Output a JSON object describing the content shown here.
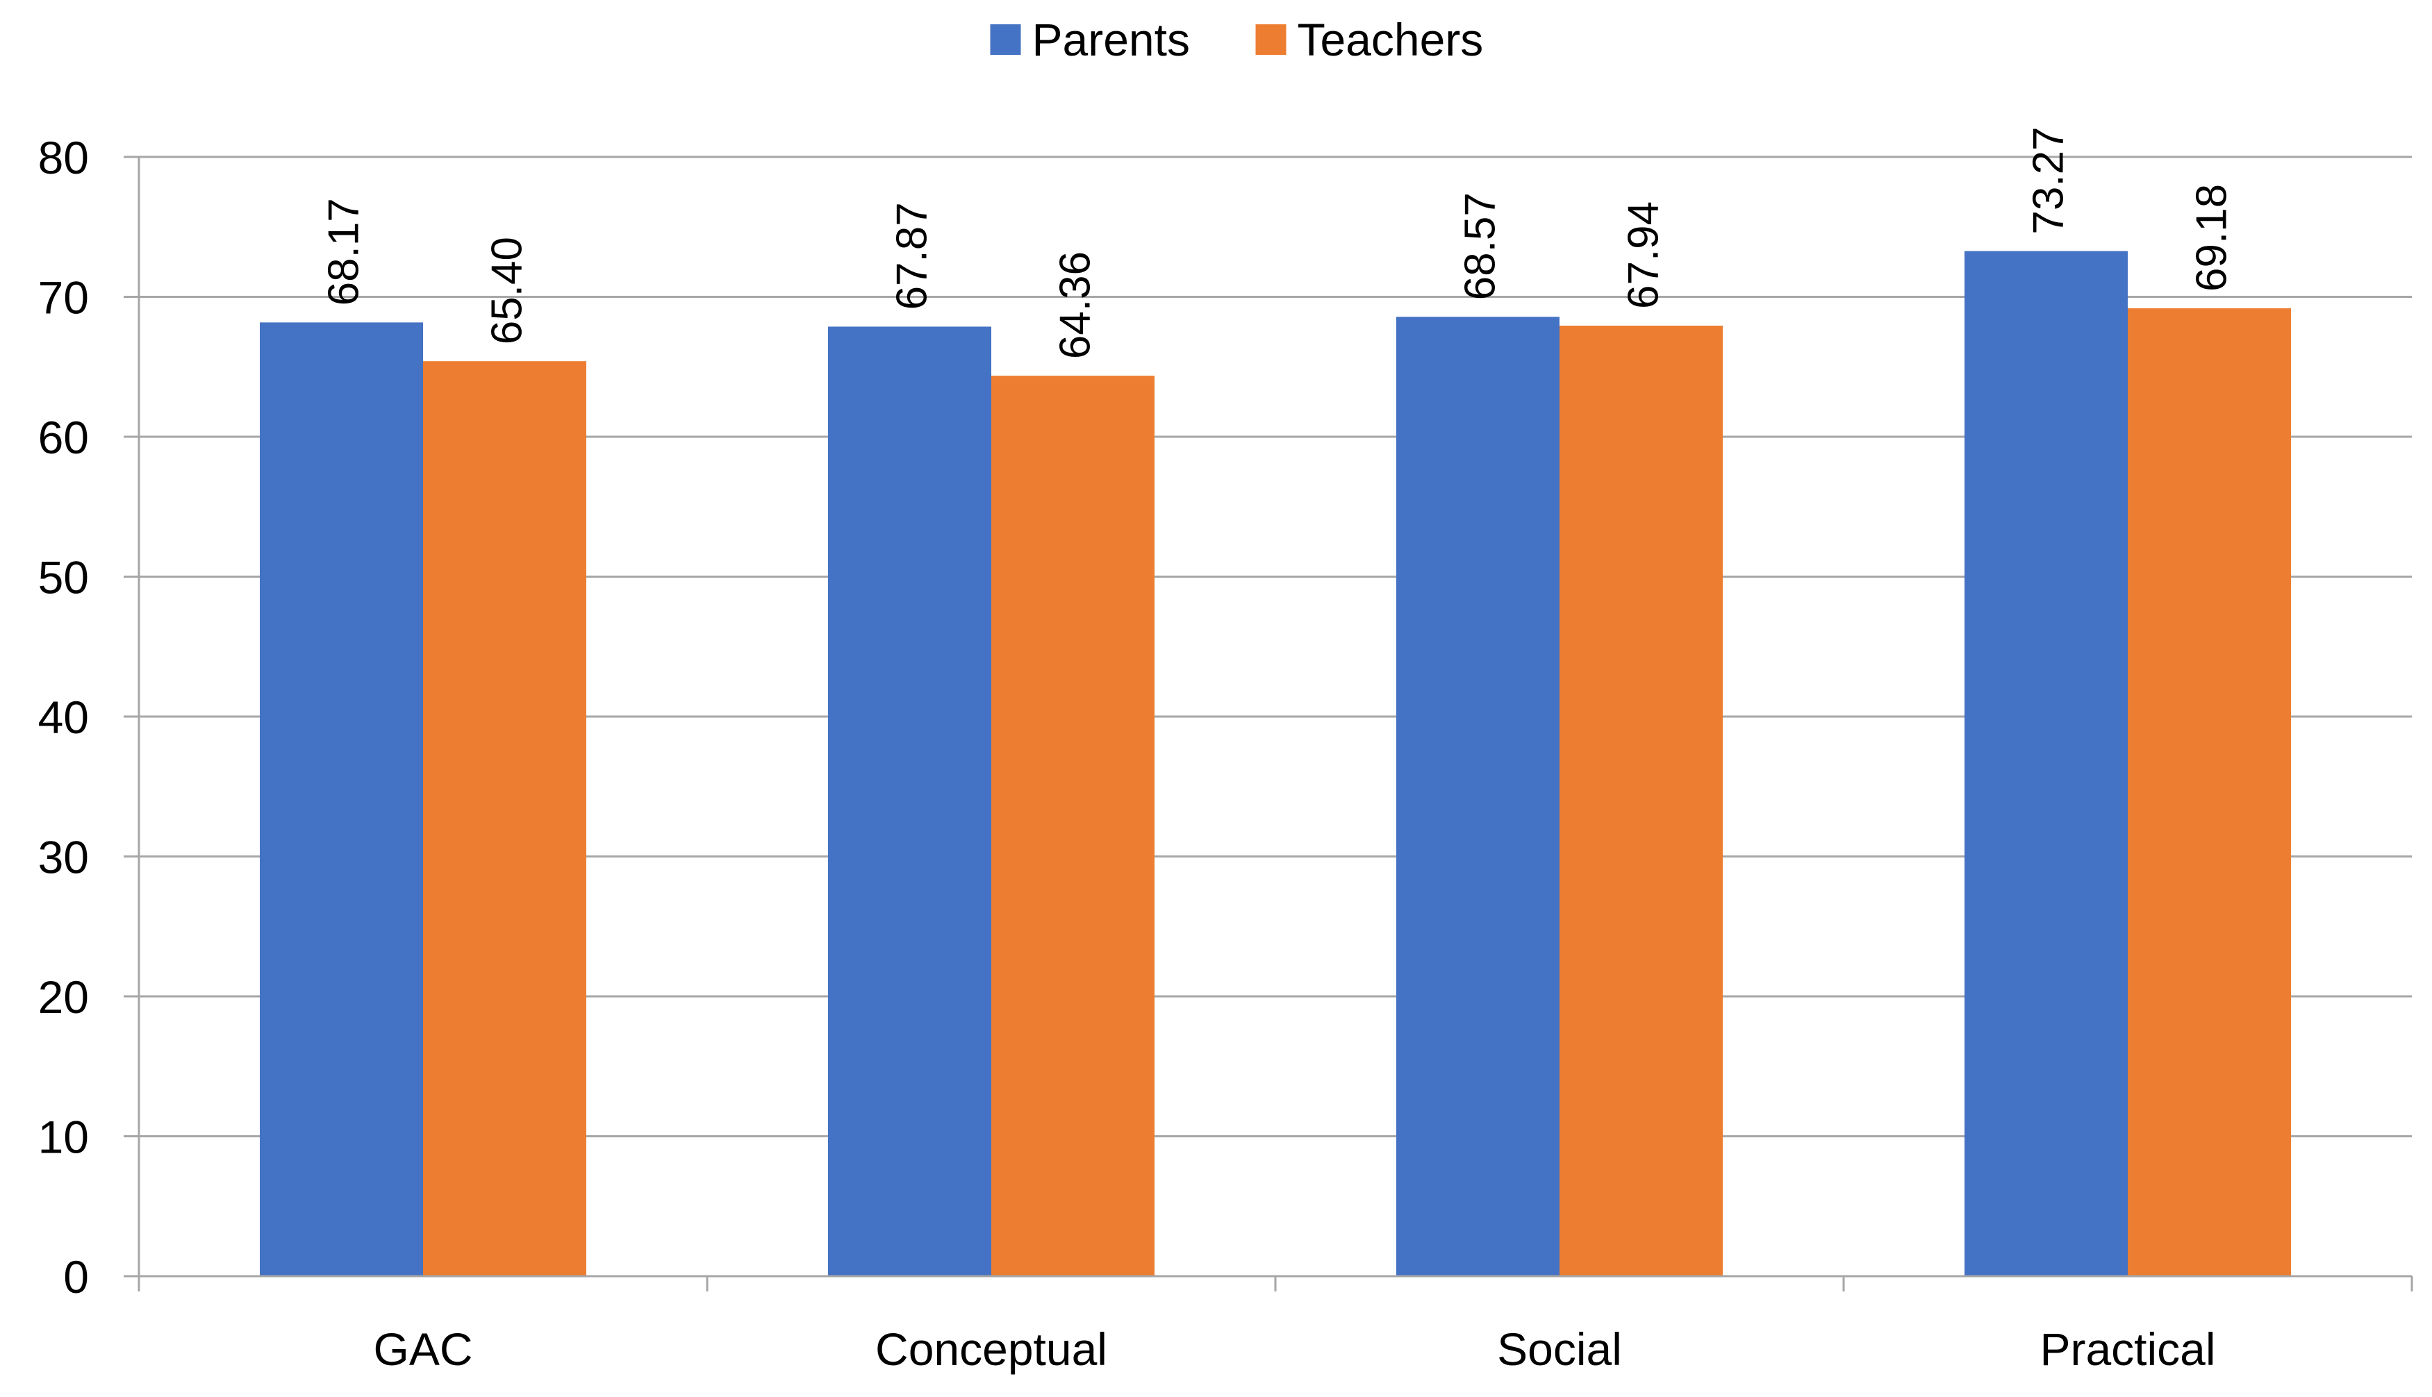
{
  "chart_data": {
    "type": "bar",
    "title": "",
    "xlabel": "",
    "ylabel": "",
    "categories": [
      "GAC",
      "Conceptual",
      "Social",
      "Practical"
    ],
    "series": [
      {
        "name": "Parents",
        "color": "#4472C4",
        "values": [
          68.17,
          67.87,
          68.57,
          73.27
        ],
        "labels": [
          "68.17",
          "67.87",
          "68.57",
          "73.27"
        ]
      },
      {
        "name": "Teachers",
        "color": "#ED7D31",
        "values": [
          65.4,
          64.36,
          67.94,
          69.18
        ],
        "labels": [
          "65.40",
          "64.36",
          "67.94",
          "69.18"
        ]
      }
    ],
    "ylim": [
      0,
      80
    ],
    "yticks": [
      "0",
      "10",
      "20",
      "30",
      "40",
      "50",
      "60",
      "70",
      "80"
    ],
    "grid": true,
    "legend_position": "top-center",
    "data_label_orientation": "vertical"
  }
}
